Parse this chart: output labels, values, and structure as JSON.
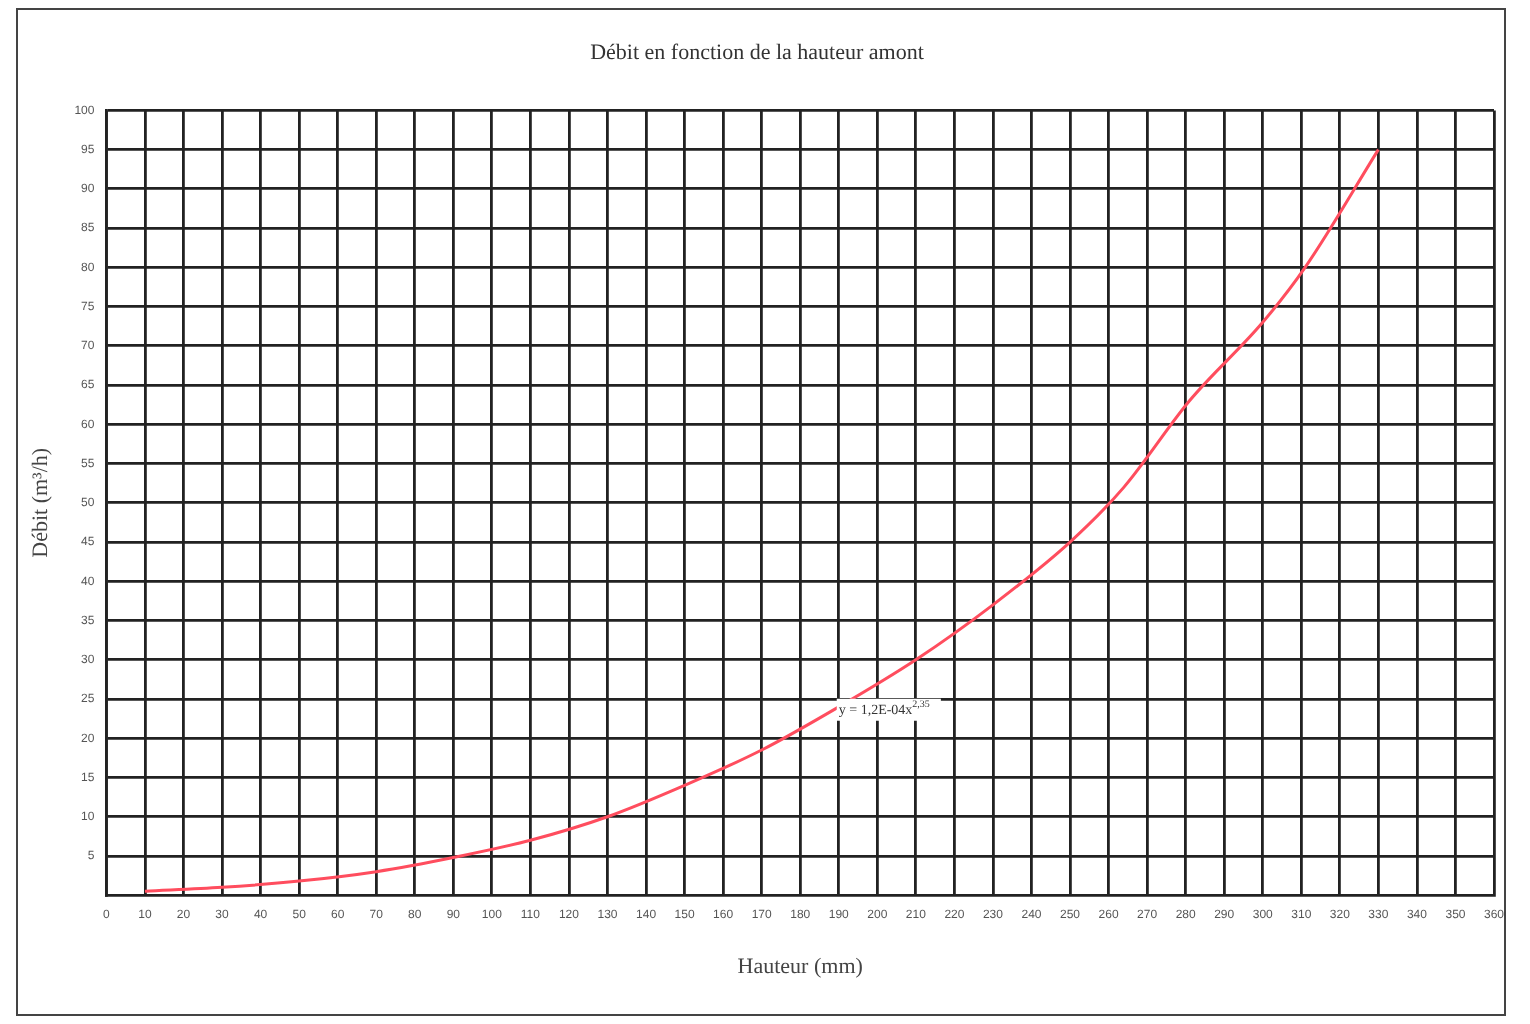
{
  "chart_data": {
    "type": "line",
    "title": "Débit en fonction de la hauteur amont",
    "xlabel": "Hauteur (mm)",
    "ylabel": "Débit (m³/h)",
    "x": [
      10,
      30,
      50,
      70,
      90,
      110,
      130,
      150,
      170,
      190,
      210,
      230,
      250,
      264,
      281,
      300,
      311,
      330
    ],
    "series": [
      {
        "color": "#ff4d5e",
        "values": [
          0.5,
          1,
          1.8,
          3,
          4.8,
          7,
          10,
          14,
          18.5,
          24,
          30,
          37,
          45,
          52,
          63,
          73,
          80,
          95
        ]
      }
    ],
    "xlim": [
      0,
      360
    ],
    "xticks": [
      0,
      10,
      20,
      30,
      40,
      50,
      60,
      70,
      80,
      90,
      100,
      110,
      120,
      130,
      140,
      150,
      160,
      170,
      180,
      190,
      200,
      210,
      220,
      230,
      240,
      250,
      260,
      270,
      280,
      290,
      300,
      310,
      320,
      330,
      340,
      350,
      360
    ],
    "ylim": [
      0,
      100
    ],
    "yticks": [
      5,
      10,
      15,
      20,
      25,
      30,
      35,
      40,
      45,
      50,
      55,
      60,
      65,
      70,
      75,
      80,
      85,
      90,
      95,
      100
    ],
    "grid": true,
    "legend": false,
    "marker": "none",
    "line_style": "solid",
    "annotations": [
      {
        "text": "y = 1,2E-04x$^{2,35}$",
        "x": 190,
        "y": 23.5
      }
    ]
  }
}
